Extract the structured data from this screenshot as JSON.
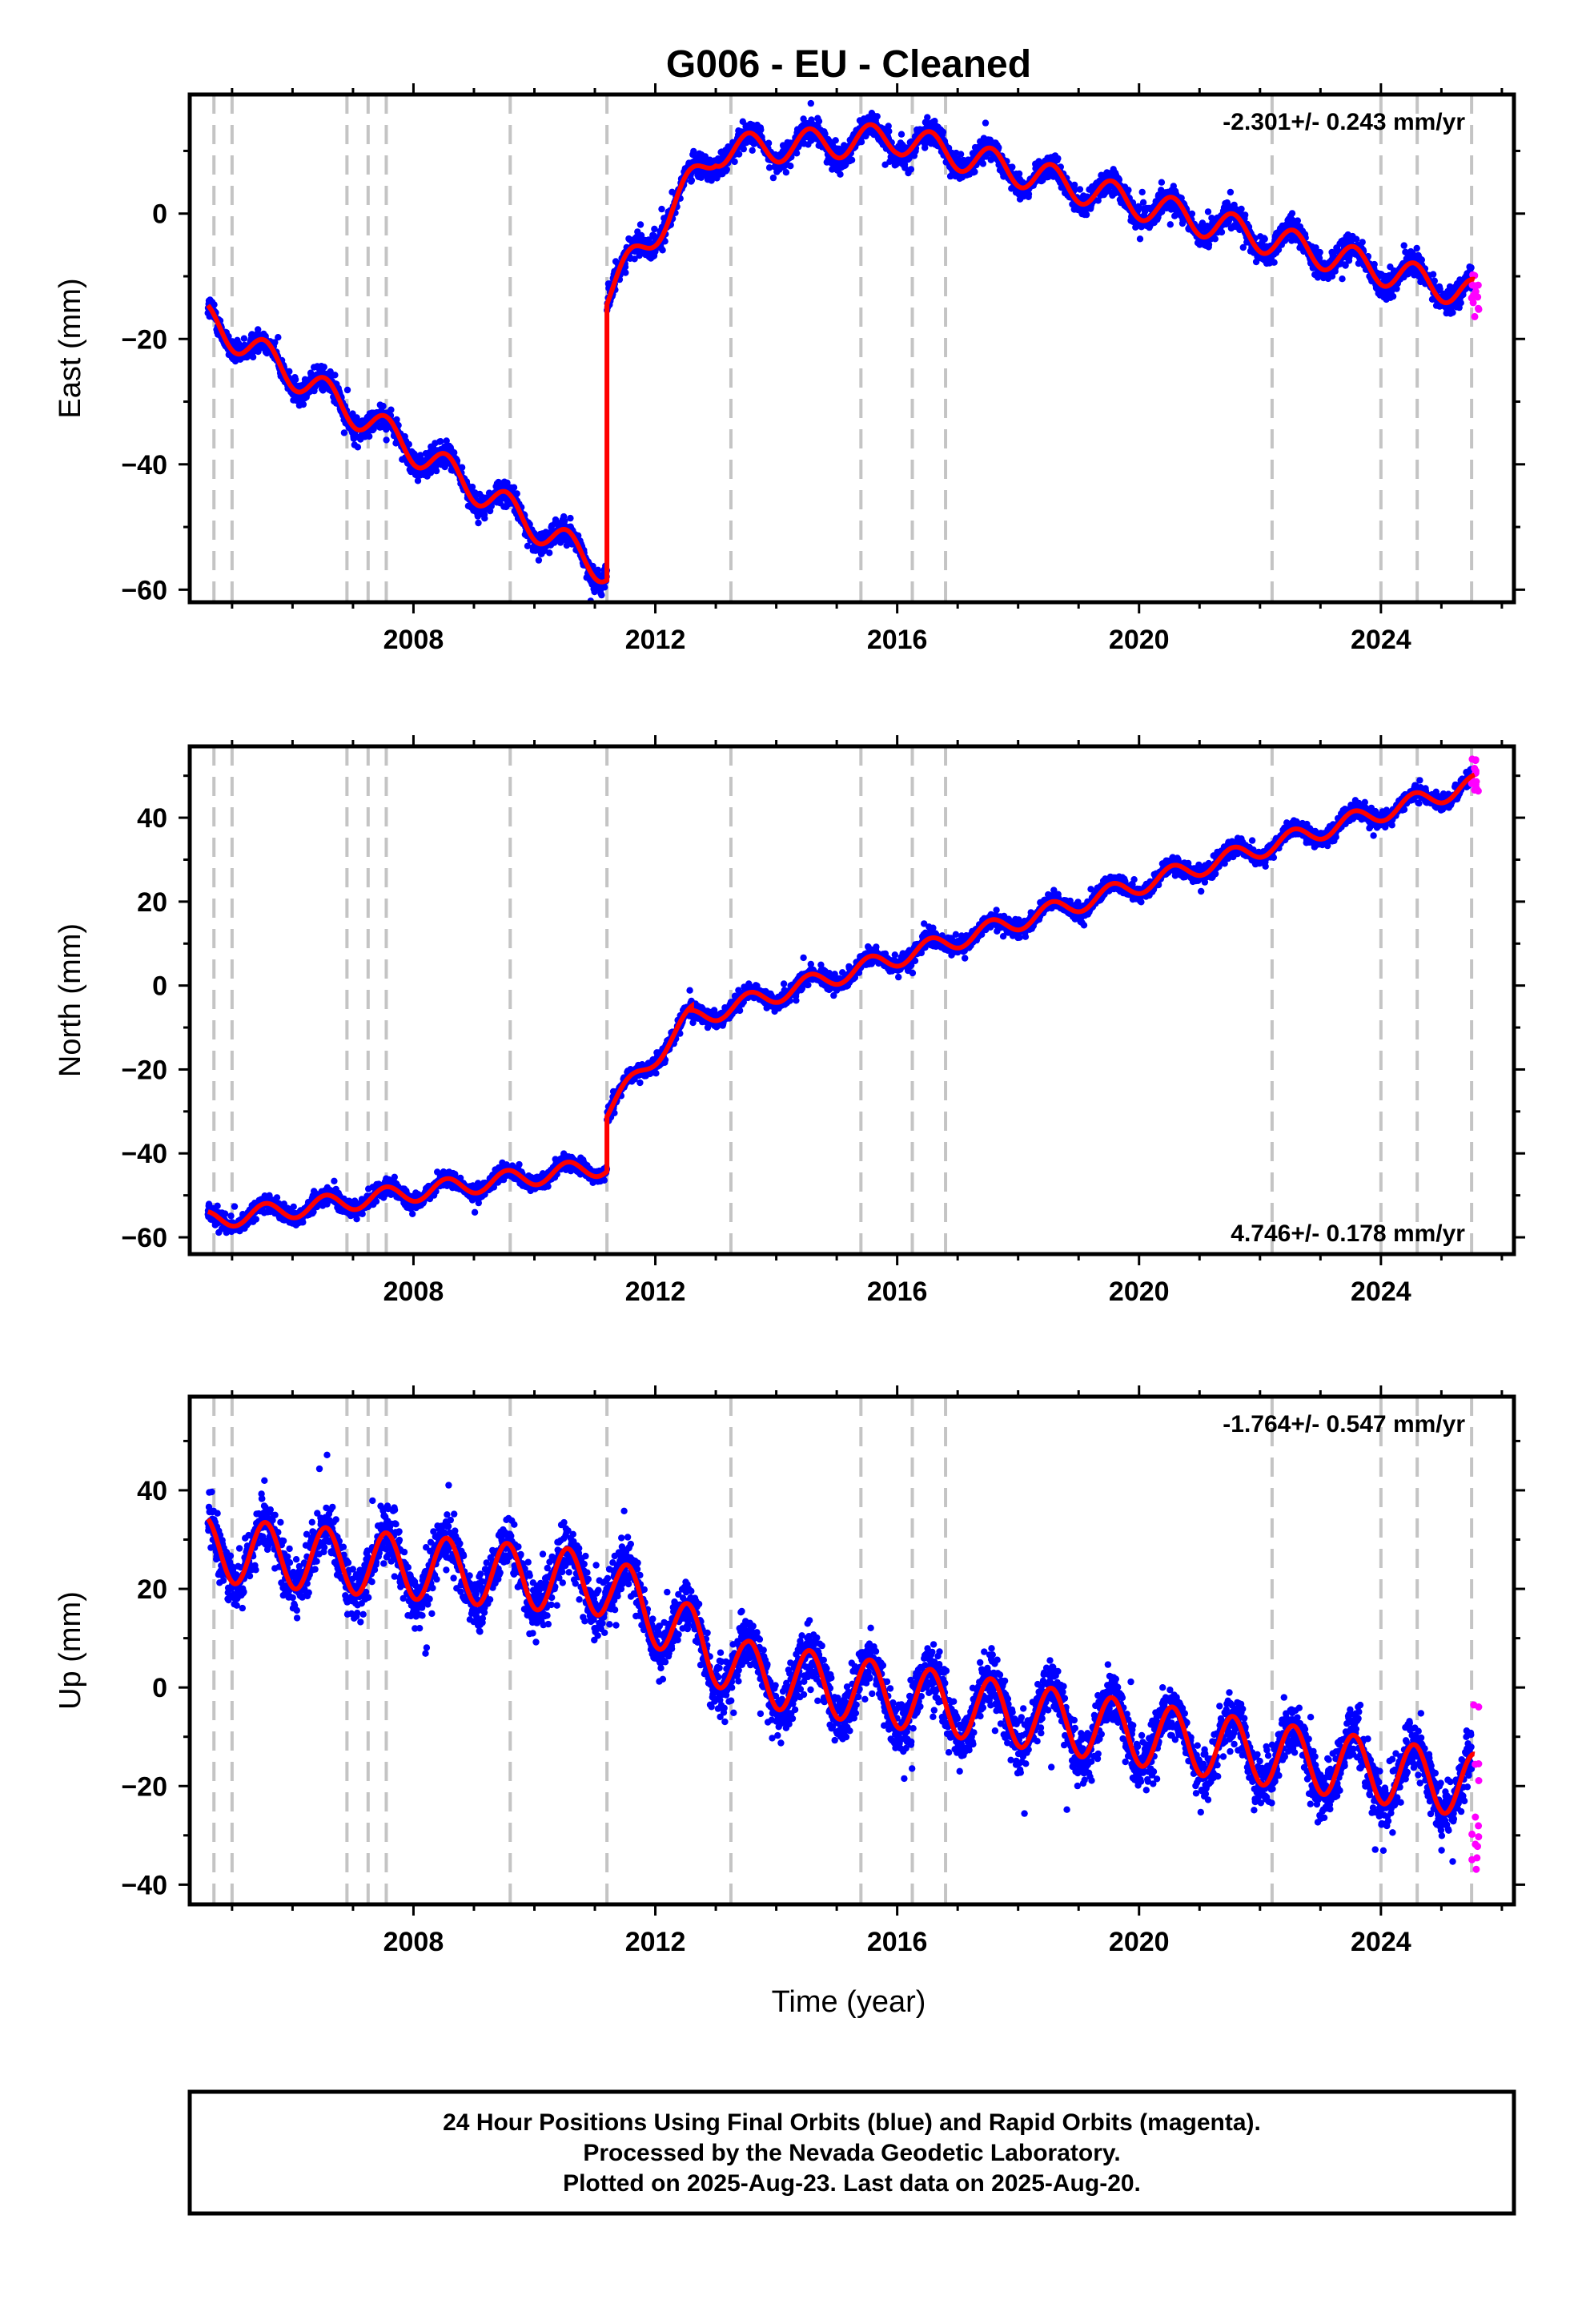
{
  "title": "G006  - EU - Cleaned",
  "x_axis_label": "Time (year)",
  "footer": {
    "line1": "24 Hour Positions Using Final Orbits (blue) and Rapid Orbits (magenta).",
    "line2": "Processed by the Nevada Geodetic Laboratory.",
    "line3": "Plotted on 2025-Aug-23. Last data on 2025-Aug-20."
  },
  "colors": {
    "final_orbits": "#0000ff",
    "rapid_orbits": "#ff00ff",
    "model_fit": "#ff0000",
    "event_lines": "#c4c4c4"
  },
  "chart_data": [
    {
      "type": "scatter",
      "component": "east",
      "ylabel": "East (mm)",
      "rate": "-2.301+/- 0.243 mm/yr",
      "rate_position": "top-right",
      "xlim": [
        2004.3,
        2026.2
      ],
      "ylim": [
        -62,
        19
      ],
      "xticks": [
        2008,
        2012,
        2016,
        2020,
        2024
      ],
      "yticks": [
        -60,
        -40,
        -20,
        0
      ],
      "grid": false,
      "event_lines": [
        2004.7,
        2005.0,
        2006.9,
        2007.25,
        2007.55,
        2009.6,
        2011.2,
        2013.25,
        2015.4,
        2016.25,
        2016.8,
        2022.2,
        2024.0,
        2024.6,
        2025.5
      ],
      "model_fit": {
        "type": "piecewise linear trend + annual seasonal",
        "segments": [
          {
            "x": [
              2004.6,
              2011.2
            ],
            "y": [
              -17,
              -57
            ]
          },
          {
            "x": [
              2011.2,
              2013.0
            ],
            "y": [
              -13,
              10
            ]
          },
          {
            "x": [
              2013.0,
              2016.0
            ],
            "y": [
              10,
              12
            ]
          },
          {
            "x": [
              2016.0,
              2025.55
            ],
            "y": [
              12,
              -13
            ]
          }
        ],
        "step": {
          "x": 2011.2,
          "from": -57,
          "to": -13
        },
        "seasonal_amplitude": 2.5
      },
      "observations": {
        "color": "final_orbits",
        "scatter_sd": 1.3,
        "x_range": [
          2004.6,
          2025.5
        ]
      },
      "rapid_orbits": {
        "x_range": [
          2025.5,
          2025.62
        ],
        "y_range": [
          -17,
          -9
        ]
      }
    },
    {
      "type": "scatter",
      "component": "north",
      "ylabel": "North (mm)",
      "rate": "4.746+/- 0.178 mm/yr",
      "rate_position": "bottom-right",
      "xlim": [
        2004.3,
        2026.2
      ],
      "ylim": [
        -64,
        57
      ],
      "xticks": [
        2008,
        2012,
        2016,
        2020,
        2024
      ],
      "yticks": [
        -60,
        -40,
        -20,
        0,
        20,
        40
      ],
      "grid": false,
      "event_lines": [
        2004.7,
        2005.0,
        2006.9,
        2007.25,
        2007.55,
        2009.6,
        2011.2,
        2013.25,
        2015.4,
        2016.25,
        2016.8,
        2022.2,
        2024.0,
        2024.6,
        2025.5
      ],
      "model_fit": {
        "type": "piecewise linear trend + annual seasonal",
        "segments": [
          {
            "x": [
              2004.6,
              2011.2
            ],
            "y": [
              -56,
              -43
            ]
          },
          {
            "x": [
              2011.2,
              2012.6
            ],
            "y": [
              -30,
              -7
            ]
          },
          {
            "x": [
              2012.6,
              2025.55
            ],
            "y": [
              -8,
              48
            ]
          }
        ],
        "step": {
          "x": 2011.2,
          "from": -43,
          "to": -30
        },
        "seasonal_amplitude": 2.2
      },
      "observations": {
        "color": "final_orbits",
        "scatter_sd": 1.3,
        "x_range": [
          2004.6,
          2025.5
        ]
      },
      "rapid_orbits": {
        "x_range": [
          2025.5,
          2025.62
        ],
        "y_range": [
          46,
          54
        ]
      }
    },
    {
      "type": "scatter",
      "component": "up",
      "ylabel": "Up (mm)",
      "rate": "-1.764+/- 0.547 mm/yr",
      "rate_position": "top-right",
      "xlim": [
        2004.3,
        2026.2
      ],
      "ylim": [
        -44,
        59
      ],
      "xticks": [
        2008,
        2012,
        2016,
        2020,
        2024
      ],
      "yticks": [
        -40,
        -20,
        0,
        20,
        40
      ],
      "grid": false,
      "event_lines": [
        2004.7,
        2005.0,
        2006.9,
        2007.25,
        2007.55,
        2009.6,
        2011.2,
        2013.25,
        2015.4,
        2016.25,
        2016.8,
        2022.2,
        2024.0,
        2024.6,
        2025.5
      ],
      "model_fit": {
        "type": "piecewise linear trend + annual seasonal",
        "segments": [
          {
            "x": [
              2004.6,
              2011.2
            ],
            "y": [
              28,
              21
            ]
          },
          {
            "x": [
              2011.2,
              2013.5
            ],
            "y": [
              21,
              3
            ]
          },
          {
            "x": [
              2013.5,
              2025.55
            ],
            "y": [
              3,
              -20
            ]
          }
        ],
        "seasonal_amplitude": 6.5
      },
      "observations": {
        "color": "final_orbits",
        "scatter_sd": 3.8,
        "x_range": [
          2004.6,
          2025.5
        ]
      },
      "rapid_orbits": {
        "x_range": [
          2025.5,
          2025.62
        ],
        "y_range": [
          -38,
          -3
        ]
      }
    }
  ]
}
